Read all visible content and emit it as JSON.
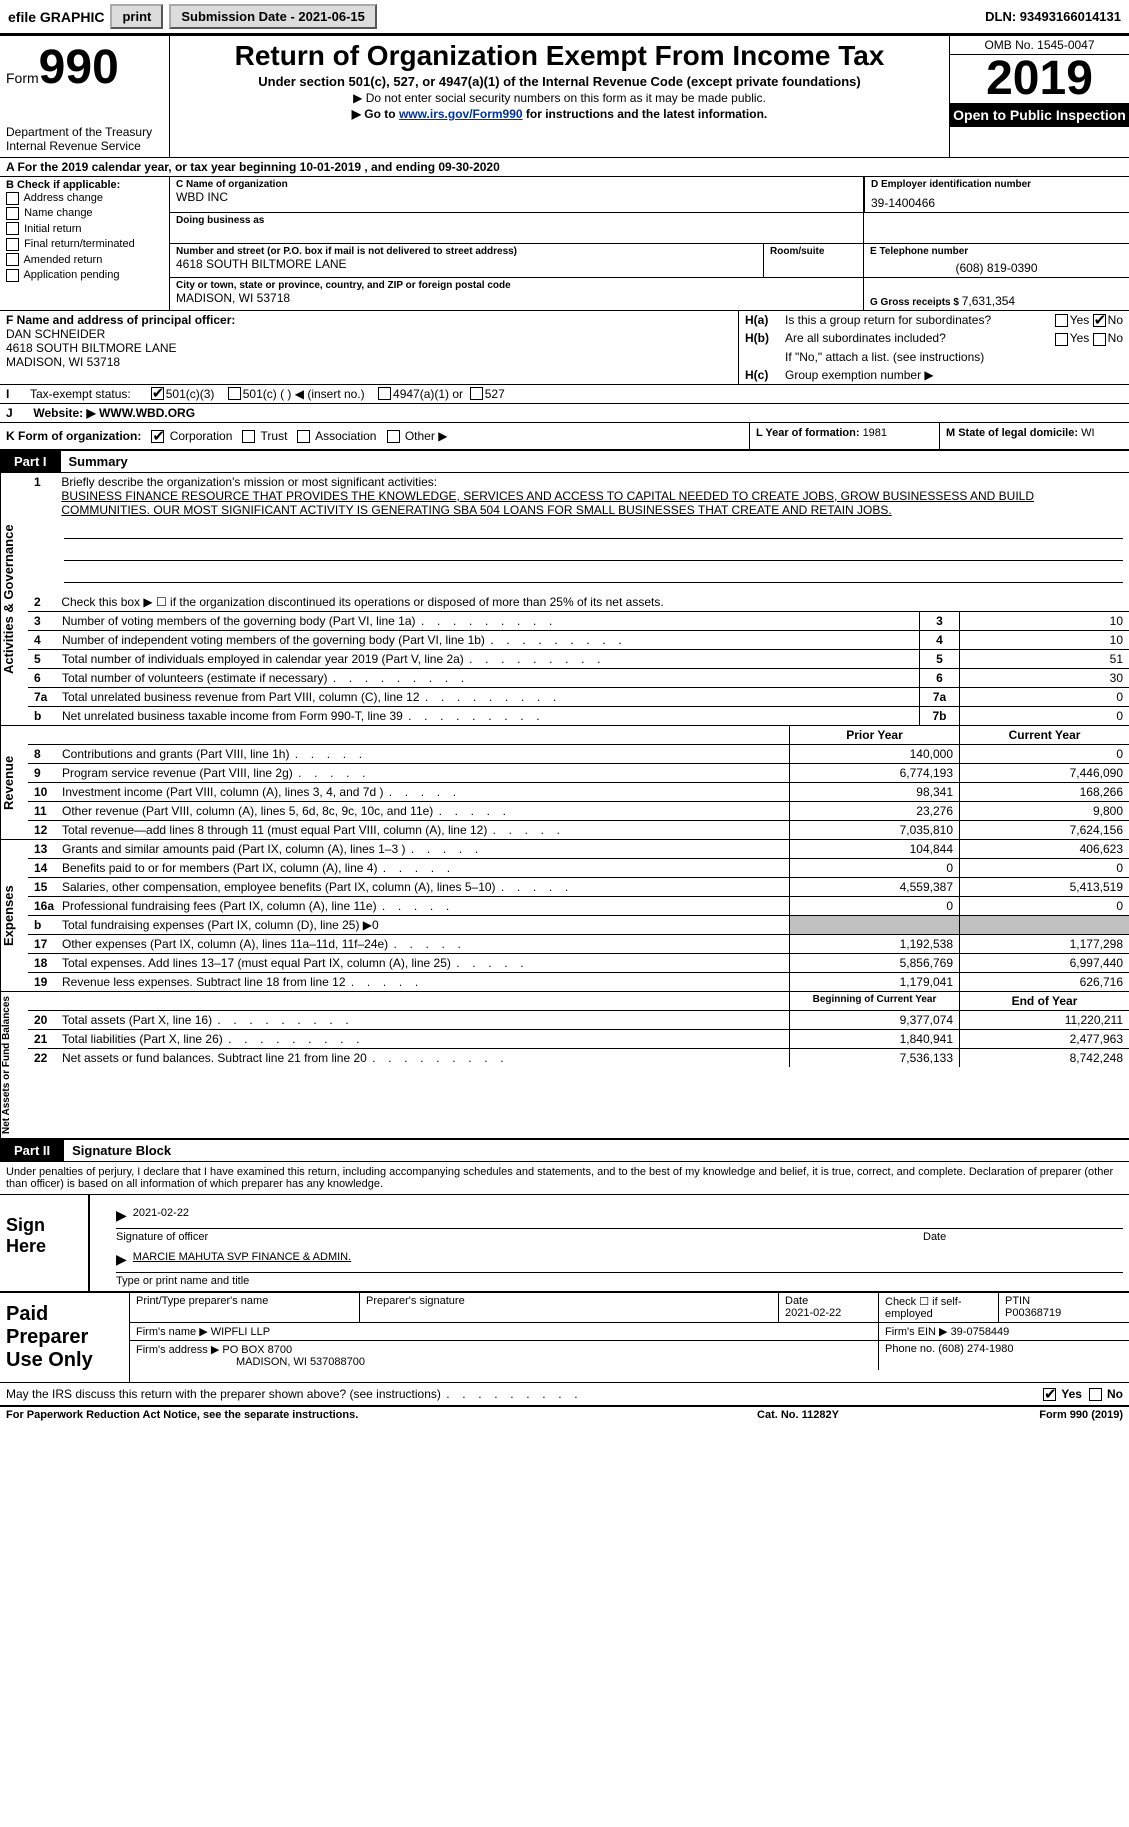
{
  "topbar": {
    "efile_prefix": "efile",
    "efile_bold": "GRAPHIC",
    "print_label": "print",
    "submission_label": "Submission Date - 2021-06-15",
    "dln": "DLN: 93493166014131"
  },
  "header": {
    "form_word": "Form",
    "form_num": "990",
    "dept": "Department of the Treasury",
    "irs": "Internal Revenue Service",
    "title": "Return of Organization Exempt From Income Tax",
    "sub1": "Under section 501(c), 527, or 4947(a)(1) of the Internal Revenue Code (except private foundations)",
    "sub2": "▶ Do not enter social security numbers on this form as it may be made public.",
    "sub3_pre": "▶ Go to ",
    "sub3_link": "www.irs.gov/Form990",
    "sub3_post": " for instructions and the latest information.",
    "omb": "OMB No. 1545-0047",
    "year": "2019",
    "open": "Open to Public Inspection"
  },
  "lineA": "A For the 2019 calendar year, or tax year beginning 10-01-2019    , and ending 09-30-2020",
  "boxB": {
    "header": "B Check if applicable:",
    "items": [
      "Address change",
      "Name change",
      "Initial return",
      "Final return/terminated",
      "Amended return",
      "Application pending"
    ]
  },
  "boxC": {
    "name_label": "C Name of organization",
    "name": "WBD INC",
    "dba_label": "Doing business as",
    "street_label": "Number and street (or P.O. box if mail is not delivered to street address)",
    "street": "4618 SOUTH BILTMORE LANE",
    "suite_label": "Room/suite",
    "city_label": "City or town, state or province, country, and ZIP or foreign postal code",
    "city": "MADISON, WI  53718"
  },
  "boxD": {
    "label": "D Employer identification number",
    "value": "39-1400466"
  },
  "boxE": {
    "label": "E Telephone number",
    "value": "(608) 819-0390"
  },
  "boxG": {
    "label": "G Gross receipts $ ",
    "value": "7,631,354"
  },
  "boxF": {
    "label": "F Name and address of principal officer:",
    "name": "DAN SCHNEIDER",
    "street": "4618 SOUTH BILTMORE LANE",
    "city": "MADISON, WI  53718"
  },
  "boxH": {
    "a_label": "H(a)",
    "a_text": "Is this a group return for subordinates?",
    "b_label": "H(b)",
    "b_text": "Are all subordinates included?",
    "note": "If \"No,\" attach a list. (see instructions)",
    "c_label": "H(c)",
    "c_text": "Group exemption number ▶"
  },
  "lineI": {
    "label": "I",
    "text": "Tax-exempt status:",
    "opts": [
      "501(c)(3)",
      "501(c) (  ) ◀ (insert no.)",
      "4947(a)(1) or",
      "527"
    ]
  },
  "lineJ": {
    "label": "J",
    "text": "Website: ▶",
    "value": "WWW.WBD.ORG"
  },
  "lineK": {
    "label": "K Form of organization:",
    "opts": [
      "Corporation",
      "Trust",
      "Association",
      "Other ▶"
    ]
  },
  "lineL": {
    "label": "L Year of formation: ",
    "value": "1981"
  },
  "lineM": {
    "label": "M State of legal domicile: ",
    "value": "WI"
  },
  "part1": {
    "label": "Part I",
    "title": "Summary"
  },
  "summary": {
    "line1_label": "1",
    "line1_intro": "Briefly describe the organization's mission or most significant activities:",
    "line1_text": "BUSINESS FINANCE RESOURCE THAT PROVIDES THE KNOWLEDGE, SERVICES AND ACCESS TO CAPITAL NEEDED TO CREATE JOBS, GROW BUSINESSESS AND BUILD COMMUNITIES. OUR MOST SIGNIFICANT ACTIVITY IS GENERATING SBA 504 LOANS FOR SMALL BUSINESSES THAT CREATE AND RETAIN JOBS.",
    "line2": "Check this box ▶ ☐ if the organization discontinued its operations or disposed of more than 25% of its net assets."
  },
  "gov_lines": [
    {
      "n": "3",
      "d": "Number of voting members of the governing body (Part VI, line 1a)",
      "ref": "3",
      "v": "10"
    },
    {
      "n": "4",
      "d": "Number of independent voting members of the governing body (Part VI, line 1b)",
      "ref": "4",
      "v": "10"
    },
    {
      "n": "5",
      "d": "Total number of individuals employed in calendar year 2019 (Part V, line 2a)",
      "ref": "5",
      "v": "51"
    },
    {
      "n": "6",
      "d": "Total number of volunteers (estimate if necessary)",
      "ref": "6",
      "v": "30"
    },
    {
      "n": "7a",
      "d": "Total unrelated business revenue from Part VIII, column (C), line 12",
      "ref": "7a",
      "v": "0"
    },
    {
      "n": "b",
      "d": "Net unrelated business taxable income from Form 990-T, line 39",
      "ref": "7b",
      "v": "0"
    }
  ],
  "year_headers": {
    "prior": "Prior Year",
    "current": "Current Year"
  },
  "revenue_lines": [
    {
      "n": "8",
      "d": "Contributions and grants (Part VIII, line 1h)",
      "p": "140,000",
      "c": "0"
    },
    {
      "n": "9",
      "d": "Program service revenue (Part VIII, line 2g)",
      "p": "6,774,193",
      "c": "7,446,090"
    },
    {
      "n": "10",
      "d": "Investment income (Part VIII, column (A), lines 3, 4, and 7d )",
      "p": "98,341",
      "c": "168,266"
    },
    {
      "n": "11",
      "d": "Other revenue (Part VIII, column (A), lines 5, 6d, 8c, 9c, 10c, and 11e)",
      "p": "23,276",
      "c": "9,800"
    },
    {
      "n": "12",
      "d": "Total revenue—add lines 8 through 11 (must equal Part VIII, column (A), line 12)",
      "p": "7,035,810",
      "c": "7,624,156"
    }
  ],
  "expense_lines": [
    {
      "n": "13",
      "d": "Grants and similar amounts paid (Part IX, column (A), lines 1–3 )",
      "p": "104,844",
      "c": "406,623"
    },
    {
      "n": "14",
      "d": "Benefits paid to or for members (Part IX, column (A), line 4)",
      "p": "0",
      "c": "0"
    },
    {
      "n": "15",
      "d": "Salaries, other compensation, employee benefits (Part IX, column (A), lines 5–10)",
      "p": "4,559,387",
      "c": "5,413,519"
    },
    {
      "n": "16a",
      "d": "Professional fundraising fees (Part IX, column (A), line 11e)",
      "p": "0",
      "c": "0"
    },
    {
      "n": "b",
      "d": "Total fundraising expenses (Part IX, column (D), line 25) ▶0",
      "p": "",
      "c": "",
      "shaded": true
    },
    {
      "n": "17",
      "d": "Other expenses (Part IX, column (A), lines 11a–11d, 11f–24e)",
      "p": "1,192,538",
      "c": "1,177,298"
    },
    {
      "n": "18",
      "d": "Total expenses. Add lines 13–17 (must equal Part IX, column (A), line 25)",
      "p": "5,856,769",
      "c": "6,997,440"
    },
    {
      "n": "19",
      "d": "Revenue less expenses. Subtract line 18 from line 12",
      "p": "1,179,041",
      "c": "626,716"
    }
  ],
  "balance_headers": {
    "begin": "Beginning of Current Year",
    "end": "End of Year"
  },
  "balance_lines": [
    {
      "n": "20",
      "d": "Total assets (Part X, line 16)",
      "p": "9,377,074",
      "c": "11,220,211"
    },
    {
      "n": "21",
      "d": "Total liabilities (Part X, line 26)",
      "p": "1,840,941",
      "c": "2,477,963"
    },
    {
      "n": "22",
      "d": "Net assets or fund balances. Subtract line 21 from line 20",
      "p": "7,536,133",
      "c": "8,742,248"
    }
  ],
  "vert_labels": {
    "gov": "Activities & Governance",
    "rev": "Revenue",
    "exp": "Expenses",
    "bal": "Net Assets or Fund Balances"
  },
  "part2": {
    "label": "Part II",
    "title": "Signature Block"
  },
  "part2_text": "Under penalties of perjury, I declare that I have examined this return, including accompanying schedules and statements, and to the best of my knowledge and belief, it is true, correct, and complete. Declaration of preparer (other than officer) is based on all information of which preparer has any knowledge.",
  "sign": {
    "label": "Sign Here",
    "date": "2021-02-22",
    "sig_label": "Signature of officer",
    "date_label": "Date",
    "name": "MARCIE MAHUTA  SVP FINANCE & ADMIN.",
    "name_label": "Type or print name and title"
  },
  "prep": {
    "label": "Paid Preparer Use Only",
    "h1": "Print/Type preparer's name",
    "h2": "Preparer's signature",
    "h3_label": "Date",
    "h3_val": "2021-02-22",
    "h4": "Check ☐ if self-employed",
    "h5_label": "PTIN",
    "h5_val": "P00368719",
    "firm_name_label": "Firm's name    ▶",
    "firm_name": "WIPFLI LLP",
    "firm_ein_label": "Firm's EIN ▶",
    "firm_ein": "39-0758449",
    "firm_addr_label": "Firm's address ▶",
    "firm_addr": "PO BOX 8700",
    "firm_city": "MADISON, WI  537088700",
    "phone_label": "Phone no. ",
    "phone": "(608) 274-1980"
  },
  "discuss": "May the IRS discuss this return with the preparer shown above? (see instructions)",
  "yes": "Yes",
  "no": "No",
  "footer": {
    "f1": "For Paperwork Reduction Act Notice, see the separate instructions.",
    "f2": "Cat. No. 11282Y",
    "f3": "Form 990 (2019)"
  }
}
